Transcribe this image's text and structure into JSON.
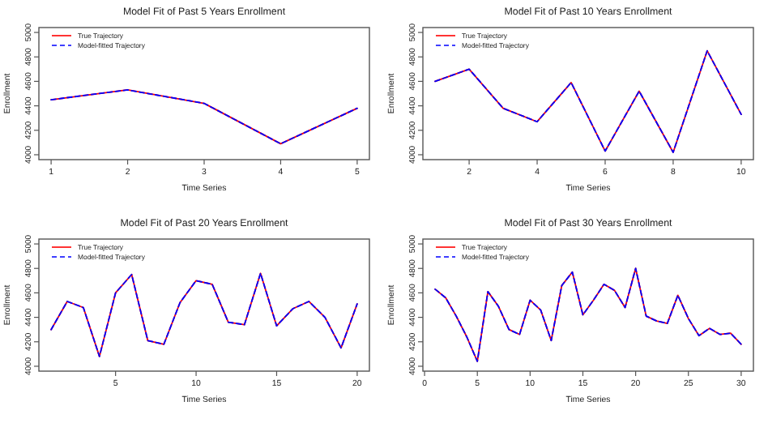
{
  "chart_data": [
    {
      "type": "line",
      "title": "Model Fit of Past 5 Years Enrollment",
      "xlabel": "Time Series",
      "ylabel": "Enrollment",
      "legend": "top left",
      "marker": "none",
      "x": [
        1,
        2,
        3,
        4,
        5
      ],
      "xlim": [
        0.84,
        5.16
      ],
      "xticks": [
        1,
        2,
        3,
        4,
        5
      ],
      "ylim": [
        3960,
        5040
      ],
      "yticks": [
        4000,
        4200,
        4400,
        4600,
        4800,
        5000
      ],
      "series": [
        {
          "name": "True Trajectory",
          "color": "#ff0000",
          "line_style": "solid",
          "values": [
            4450,
            4530,
            4420,
            4090,
            4380
          ]
        },
        {
          "name": "Model-fitted Trajectory",
          "color": "#0000ff",
          "line_style": "dashed",
          "values": [
            4450,
            4530,
            4420,
            4090,
            4380
          ]
        }
      ]
    },
    {
      "type": "line",
      "title": "Model Fit of Past 10 Years Enrollment",
      "xlabel": "Time Series",
      "ylabel": "Enrollment",
      "legend": "top left",
      "marker": "none",
      "x": [
        1,
        2,
        3,
        4,
        5,
        6,
        7,
        8,
        9,
        10
      ],
      "xlim": [
        0.64,
        10.36
      ],
      "xticks": [
        2,
        4,
        6,
        8,
        10
      ],
      "ylim": [
        3960,
        5040
      ],
      "yticks": [
        4000,
        4200,
        4400,
        4600,
        4800,
        5000
      ],
      "series": [
        {
          "name": "True Trajectory",
          "color": "#ff0000",
          "line_style": "solid",
          "values": [
            4600,
            4700,
            4380,
            4270,
            4590,
            4030,
            4520,
            4020,
            4850,
            4330
          ]
        },
        {
          "name": "Model-fitted Trajectory",
          "color": "#0000ff",
          "line_style": "dashed",
          "values": [
            4600,
            4700,
            4380,
            4270,
            4590,
            4030,
            4520,
            4020,
            4850,
            4330
          ]
        }
      ]
    },
    {
      "type": "line",
      "title": "Model Fit of Past 20 Years Enrollment",
      "xlabel": "Time Series",
      "ylabel": "Enrollment",
      "legend": "top left",
      "marker": "none",
      "x": [
        1,
        2,
        3,
        4,
        5,
        6,
        7,
        8,
        9,
        10,
        11,
        12,
        13,
        14,
        15,
        16,
        17,
        18,
        19,
        20
      ],
      "xlim": [
        0.24,
        20.76
      ],
      "xticks": [
        5,
        10,
        15,
        20
      ],
      "ylim": [
        3960,
        5040
      ],
      "yticks": [
        4000,
        4200,
        4400,
        4600,
        4800,
        5000
      ],
      "series": [
        {
          "name": "True Trajectory",
          "color": "#ff0000",
          "line_style": "solid",
          "values": [
            4300,
            4530,
            4480,
            4080,
            4600,
            4750,
            4210,
            4180,
            4520,
            4700,
            4670,
            4360,
            4340,
            4760,
            4330,
            4470,
            4530,
            4400,
            4150,
            4510
          ]
        },
        {
          "name": "Model-fitted Trajectory",
          "color": "#0000ff",
          "line_style": "dashed",
          "values": [
            4300,
            4530,
            4480,
            4080,
            4600,
            4750,
            4210,
            4180,
            4520,
            4700,
            4670,
            4360,
            4340,
            4760,
            4330,
            4470,
            4530,
            4400,
            4150,
            4510
          ]
        }
      ]
    },
    {
      "type": "line",
      "title": "Model Fit of Past 30 Years Enrollment",
      "xlabel": "Time Series",
      "ylabel": "Enrollment",
      "legend": "top left",
      "marker": "none",
      "x": [
        1,
        2,
        3,
        4,
        5,
        6,
        7,
        8,
        9,
        10,
        11,
        12,
        13,
        14,
        15,
        16,
        17,
        18,
        19,
        20,
        21,
        22,
        23,
        24,
        25,
        26,
        27,
        28,
        29,
        30
      ],
      "xlim": [
        -0.16,
        31.16
      ],
      "xticks": [
        0,
        5,
        10,
        15,
        20,
        25,
        30
      ],
      "ylim": [
        3960,
        5040
      ],
      "yticks": [
        4000,
        4200,
        4400,
        4600,
        4800,
        5000
      ],
      "series": [
        {
          "name": "True Trajectory",
          "color": "#ff0000",
          "line_style": "solid",
          "values": [
            4630,
            4560,
            4410,
            4240,
            4040,
            4610,
            4490,
            4300,
            4260,
            4540,
            4460,
            4210,
            4660,
            4770,
            4420,
            4540,
            4670,
            4620,
            4480,
            4800,
            4410,
            4370,
            4350,
            4580,
            4390,
            4250,
            4310,
            4260,
            4270,
            4180
          ]
        },
        {
          "name": "Model-fitted Trajectory",
          "color": "#0000ff",
          "line_style": "dashed",
          "values": [
            4630,
            4560,
            4410,
            4240,
            4040,
            4610,
            4490,
            4300,
            4260,
            4540,
            4460,
            4210,
            4660,
            4770,
            4420,
            4540,
            4670,
            4620,
            4480,
            4800,
            4410,
            4370,
            4350,
            4580,
            4390,
            4250,
            4310,
            4260,
            4270,
            4180
          ]
        }
      ]
    }
  ]
}
